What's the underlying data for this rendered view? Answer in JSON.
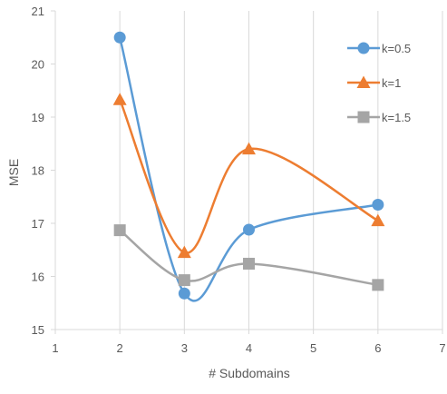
{
  "chart_data": {
    "type": "line",
    "xlabel": "# Subdomains",
    "ylabel": "MSE",
    "xlim": [
      1,
      7
    ],
    "ylim": [
      15,
      21
    ],
    "xticks": [
      1,
      2,
      3,
      4,
      5,
      6,
      7
    ],
    "yticks": [
      15,
      16,
      17,
      18,
      19,
      20,
      21
    ],
    "grid": "vertical",
    "smooth": true,
    "legend_position": "top-right",
    "series": [
      {
        "name": "k=0.5",
        "color": "#5B9BD5",
        "marker": "circle",
        "x": [
          2,
          3,
          4,
          6
        ],
        "y": [
          20.5,
          15.68,
          16.88,
          17.35
        ]
      },
      {
        "name": "k=1",
        "color": "#ED7D31",
        "marker": "triangle",
        "x": [
          2,
          3,
          4,
          6
        ],
        "y": [
          19.33,
          16.45,
          18.4,
          17.05
        ]
      },
      {
        "name": "k=1.5",
        "color": "#A5A5A5",
        "marker": "square",
        "x": [
          2,
          3,
          4,
          6
        ],
        "y": [
          16.87,
          15.93,
          16.24,
          15.84
        ]
      }
    ]
  }
}
